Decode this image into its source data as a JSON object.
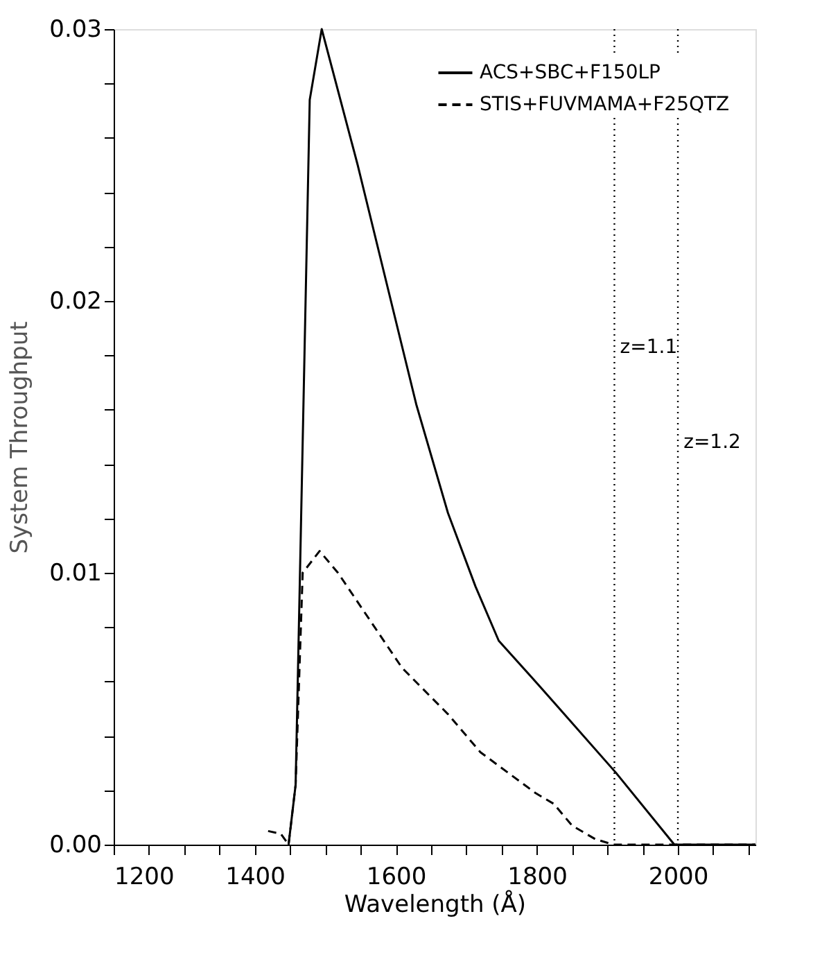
{
  "chart_data": {
    "type": "line",
    "xlabel": "Wavelength (Å)",
    "ylabel": "System Throughput",
    "xlim": [
      1200,
      2110
    ],
    "ylim": [
      0,
      0.03
    ],
    "xticks": [
      1200,
      {
        "value": 1250,
        "label": null
      },
      {
        "value": 1300,
        "label": null
      },
      {
        "value": 1350,
        "label": null
      },
      1400,
      {
        "value": 1450,
        "label": null
      },
      {
        "value": 1500,
        "label": null
      },
      {
        "value": 1550,
        "label": null
      },
      1600,
      {
        "value": 1650,
        "label": null
      },
      {
        "value": 1700,
        "label": null
      },
      {
        "value": 1750,
        "label": null
      },
      1800,
      {
        "value": 1850,
        "label": null
      },
      {
        "value": 1900,
        "label": null
      },
      {
        "value": 1950,
        "label": null
      },
      2000,
      {
        "value": 2050,
        "label": null
      },
      {
        "value": 2100,
        "label": null
      }
    ],
    "yticks": [
      {
        "value": 0,
        "label": "0.00"
      },
      {
        "value": 0.002,
        "label": null
      },
      {
        "value": 0.004,
        "label": null
      },
      {
        "value": 0.006,
        "label": null
      },
      {
        "value": 0.008,
        "label": null
      },
      {
        "value": 0.01,
        "label": "0.01"
      },
      {
        "value": 0.012,
        "label": null
      },
      {
        "value": 0.014,
        "label": null
      },
      {
        "value": 0.016,
        "label": null
      },
      {
        "value": 0.018,
        "label": null
      },
      {
        "value": 0.02,
        "label": "0.02"
      },
      {
        "value": 0.022,
        "label": null
      },
      {
        "value": 0.024,
        "label": null
      },
      {
        "value": 0.026,
        "label": null
      },
      {
        "value": 0.028,
        "label": null
      },
      {
        "value": 0.03,
        "label": "0.03"
      }
    ],
    "grid": false,
    "legend": "top right",
    "marker": "none",
    "series": [
      {
        "name": "ACS+SBC+F150LP",
        "color": "#000000",
        "line_style": "solid",
        "x": [
          1448,
          1458,
          1478,
          1495,
          1546,
          1629,
          1674,
          1713,
          1746,
          1805,
          1912,
          1995,
          2110
        ],
        "values": [
          0,
          0.0022,
          0.0274,
          0.03,
          0.025,
          0.0162,
          0.0122,
          0.0095,
          0.0075,
          0.0058,
          0.00265,
          0,
          0
        ]
      },
      {
        "name": "STIS+FUVMAMA+F25QTZ",
        "color": "#000000",
        "line_style": "dashed",
        "x": [
          1419,
          1437,
          1448,
          1458,
          1468,
          1492,
          1518,
          1570,
          1609,
          1674,
          1720,
          1798,
          1824,
          1850,
          1883,
          1909,
          2110
        ],
        "values": [
          0.0005,
          0.0004,
          0,
          0.0022,
          0.01,
          0.0108,
          0.01,
          0.008,
          0.0065,
          0.0048,
          0.0034,
          0.0019,
          0.0015,
          0.0007,
          0.0002,
          0,
          0
        ]
      }
    ],
    "ref_lines": [
      {
        "axis": "x",
        "value": 1910,
        "color": "#000000",
        "line_style": "dotted"
      },
      {
        "axis": "x",
        "value": 2000,
        "color": "#000000",
        "line_style": "dotted"
      }
    ],
    "annotations": [
      {
        "text": "z=1.1",
        "x": 1918,
        "y": 0.0183
      },
      {
        "text": "z=1.2",
        "x": 2008,
        "y": 0.0148
      }
    ]
  }
}
